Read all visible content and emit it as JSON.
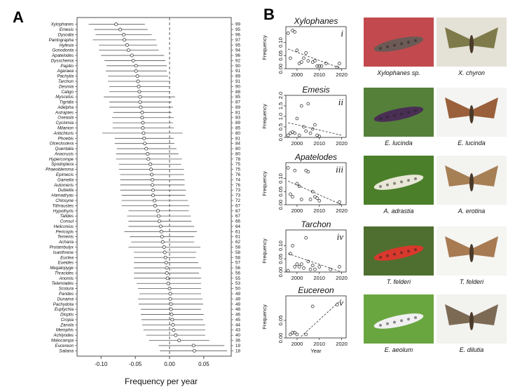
{
  "panel_a_label": "A",
  "panel_b_label": "B",
  "chart_data": [
    {
      "type": "forest",
      "panel": "A",
      "xlabel": "Frequency per year",
      "xlim": [
        -0.135,
        0.09
      ],
      "xticks": [
        -0.1,
        -0.05,
        0.0,
        0.05
      ],
      "xtick_labels": [
        "-0.10",
        "-0.05",
        "0.00",
        "0.05"
      ],
      "reference_line": 0,
      "species": [
        "Xylophanes",
        "Emesis",
        "Dysodia",
        "Pantographa",
        "Hylesia",
        "Gonodonta",
        "Apatelodes",
        "Dysschema",
        "Papilio",
        "Agaraea",
        "Pachylia",
        "Tarchon",
        "Desmia",
        "Caligo",
        "Myscelus",
        "Tigridia",
        "Adelpha",
        "Astraptes",
        "Oxeasia",
        "Cyclomia",
        "Milanion",
        "Antichloris",
        "Phoebis",
        "Olceclostera",
        "Quentalia",
        "Anacrusis",
        "Hypercompe",
        "Spodoptera",
        "Phaeoblemma",
        "Epimecis",
        "Gamelia",
        "Automeris",
        "Dubiella",
        "Hamadryas",
        "Chlosyne",
        "Tithraustes",
        "Hypothyris",
        "Talides",
        "Consul",
        "Heliconius",
        "Pericopis",
        "Temenis",
        "Acharia",
        "Protambulyx",
        "Isanthrene",
        "Euclea",
        "Eueides",
        "Megalopyge",
        "Thracides",
        "Anomis",
        "Telemiades",
        "Scotura",
        "Parides",
        "Dunama",
        "Pachydota",
        "Euptychia",
        "Dioptis",
        "Cropia",
        "Zanola",
        "Memphis",
        "Achlyodes",
        "Malocampa",
        "Eucereon",
        "Saliana"
      ],
      "counts": [
        99,
        95,
        96,
        97,
        95,
        94,
        96,
        92,
        90,
        91,
        89,
        91,
        90,
        88,
        85,
        87,
        89,
        81,
        83,
        89,
        85,
        80,
        81,
        84,
        80,
        80,
        78,
        75,
        75,
        76,
        74,
        76,
        73,
        73,
        72,
        67,
        67,
        67,
        66,
        64,
        61,
        61,
        62,
        58,
        58,
        58,
        57,
        56,
        56,
        55,
        53,
        50,
        49,
        49,
        49,
        48,
        46,
        45,
        44,
        43,
        40,
        36,
        19,
        18
      ],
      "estimates": [
        -0.078,
        -0.072,
        -0.067,
        -0.066,
        -0.062,
        -0.06,
        -0.055,
        -0.053,
        -0.049,
        -0.049,
        -0.047,
        -0.046,
        -0.045,
        -0.044,
        -0.043,
        -0.043,
        -0.042,
        -0.04,
        -0.04,
        -0.039,
        -0.039,
        -0.038,
        -0.037,
        -0.036,
        -0.034,
        -0.032,
        -0.031,
        -0.028,
        -0.027,
        -0.026,
        -0.025,
        -0.025,
        -0.024,
        -0.024,
        -0.022,
        -0.021,
        -0.017,
        -0.016,
        -0.015,
        -0.013,
        -0.012,
        -0.011,
        -0.01,
        -0.008,
        -0.007,
        -0.006,
        -0.005,
        -0.004,
        -0.004,
        -0.003,
        -0.002,
        0.0,
        0.001,
        0.001,
        0.002,
        0.002,
        0.003,
        0.004,
        0.005,
        0.006,
        0.009,
        0.014,
        0.035,
        0.036
      ],
      "ci_lower": [
        -0.118,
        -0.11,
        -0.108,
        -0.112,
        -0.103,
        -0.103,
        -0.1,
        -0.095,
        -0.092,
        -0.093,
        -0.09,
        -0.09,
        -0.088,
        -0.088,
        -0.096,
        -0.088,
        -0.088,
        -0.082,
        -0.084,
        -0.083,
        -0.083,
        -0.098,
        -0.08,
        -0.08,
        -0.077,
        -0.078,
        -0.078,
        -0.074,
        -0.074,
        -0.072,
        -0.072,
        -0.072,
        -0.072,
        -0.07,
        -0.07,
        -0.07,
        -0.06,
        -0.062,
        -0.06,
        -0.06,
        -0.066,
        -0.058,
        -0.056,
        -0.06,
        -0.052,
        -0.052,
        -0.052,
        -0.052,
        -0.052,
        -0.052,
        -0.048,
        -0.046,
        -0.044,
        -0.046,
        -0.045,
        -0.042,
        -0.042,
        -0.041,
        -0.04,
        -0.038,
        -0.034,
        -0.03,
        -0.016,
        -0.014
      ],
      "ci_upper": [
        -0.036,
        -0.032,
        -0.026,
        -0.02,
        -0.018,
        -0.016,
        -0.008,
        -0.006,
        -0.004,
        -0.004,
        -0.002,
        0.001,
        0.001,
        0.001,
        0.008,
        0.003,
        0.005,
        0.003,
        0.006,
        0.005,
        0.006,
        0.019,
        0.006,
        0.007,
        0.01,
        0.013,
        0.018,
        0.017,
        0.021,
        0.021,
        0.022,
        0.022,
        0.024,
        0.023,
        0.027,
        0.029,
        0.028,
        0.031,
        0.032,
        0.036,
        0.04,
        0.036,
        0.036,
        0.045,
        0.039,
        0.038,
        0.042,
        0.046,
        0.043,
        0.046,
        0.046,
        0.046,
        0.046,
        0.048,
        0.049,
        0.046,
        0.05,
        0.049,
        0.052,
        0.052,
        0.052,
        0.058,
        0.08,
        0.084
      ]
    },
    {
      "type": "scatter",
      "panel": "B-i",
      "title": "Xylophanes",
      "numeral": "i",
      "xlabel": "",
      "ylabel": "Frequency",
      "xlim": [
        1995,
        2022
      ],
      "ylim": [
        0,
        0.16
      ],
      "xticks": [
        2000,
        2010,
        2020
      ],
      "yticks": [
        0.0,
        0.05,
        0.1
      ],
      "ytick_labels": [
        "0.00",
        "0.05",
        "0.10"
      ],
      "x": [
        1996,
        1997,
        1998,
        1999,
        2000,
        2001,
        2002,
        2003,
        2004,
        2005,
        2007,
        2008,
        2009,
        2010,
        2011,
        2013,
        2018,
        2019
      ],
      "y": [
        0.135,
        0.04,
        0.145,
        0.14,
        0.07,
        0.02,
        0.025,
        0.04,
        0.06,
        0.03,
        0.025,
        0.03,
        0.01,
        0.01,
        0.01,
        0.02,
        0.005,
        0.02
      ],
      "trend": [
        [
          1996,
          0.075
        ],
        [
          2020,
          0.0
        ]
      ]
    },
    {
      "type": "scatter",
      "panel": "B-ii",
      "title": "Emesis",
      "numeral": "ii",
      "xlabel": "",
      "ylabel": "Frequency",
      "xlim": [
        1995,
        2022
      ],
      "ylim": [
        0,
        2.0
      ],
      "xticks": [
        2000,
        2010,
        2020
      ],
      "yticks": [
        0.0,
        0.5,
        1.0,
        1.5,
        2.0
      ],
      "ytick_labels": [
        "0.0",
        "0.5",
        "1.0",
        "1.5",
        "2.0"
      ],
      "x": [
        1996,
        1997,
        1998,
        1999,
        2000,
        2001,
        2002,
        2003,
        2004,
        2005,
        2006,
        2007,
        2008,
        2009,
        2010
      ],
      "y": [
        0.1,
        0.2,
        0.25,
        0.2,
        0.9,
        0.1,
        1.5,
        0.5,
        0.3,
        1.6,
        0.2,
        0.4,
        0.6,
        0.1,
        0.05
      ],
      "trend": [
        [
          1996,
          0.7
        ],
        [
          2020,
          0.1
        ]
      ]
    },
    {
      "type": "scatter",
      "panel": "B-iii",
      "title": "Apatelodes",
      "numeral": "iii",
      "xlabel": "",
      "ylabel": "Frequency",
      "xlim": [
        1995,
        2022
      ],
      "ylim": [
        0,
        0.16
      ],
      "xticks": [
        2000,
        2010,
        2020
      ],
      "yticks": [
        0.0,
        0.05,
        0.1
      ],
      "ytick_labels": [
        "0.00",
        "0.05",
        "0.10"
      ],
      "x": [
        1996,
        1997,
        1998,
        1999,
        2000,
        2001,
        2002,
        2004,
        2005,
        2006,
        2007,
        2008,
        2009,
        2010,
        2019
      ],
      "y": [
        0.14,
        0.04,
        0.03,
        0.13,
        0.08,
        0.07,
        0.02,
        0.13,
        0.125,
        0.02,
        0.05,
        0.03,
        0.025,
        0.015,
        0.01
      ],
      "trend": [
        [
          1996,
          0.09
        ],
        [
          2020,
          0.0
        ]
      ]
    },
    {
      "type": "scatter",
      "panel": "B-iv",
      "title": "Tarchon",
      "numeral": "iv",
      "xlabel": "",
      "ylabel": "Frequency",
      "xlim": [
        1995,
        2022
      ],
      "ylim": [
        0,
        0.16
      ],
      "xticks": [
        2000,
        2010,
        2020
      ],
      "yticks": [
        0.0,
        0.05,
        0.1
      ],
      "ytick_labels": [
        "0.00",
        "0.05",
        "0.10"
      ],
      "x": [
        1996,
        1997,
        1998,
        1999,
        2000,
        2001,
        2002,
        2003,
        2004,
        2005,
        2006,
        2007,
        2008,
        2010,
        2015,
        2019
      ],
      "y": [
        0.005,
        0.07,
        0.1,
        0.02,
        0.03,
        0.02,
        0.03,
        0.015,
        0.13,
        0.04,
        0.01,
        0.025,
        0.01,
        0.02,
        0.01,
        0.02
      ],
      "trend": [
        [
          1996,
          0.07
        ],
        [
          2020,
          0.0
        ]
      ]
    },
    {
      "type": "scatter",
      "panel": "B-v",
      "title": "Eucereon",
      "numeral": "v",
      "xlabel": "Year",
      "ylabel": "Frequency",
      "xlim": [
        1995,
        2022
      ],
      "ylim": [
        0,
        0.12
      ],
      "xticks": [
        2000,
        2010,
        2020
      ],
      "yticks": [
        0.0,
        0.05
      ],
      "ytick_labels": [
        "0.00",
        "0.05"
      ],
      "x": [
        1997,
        1998,
        1999,
        2000,
        2004,
        2007,
        2018
      ],
      "y": [
        0.01,
        0.015,
        0.015,
        0.01,
        0.01,
        0.09,
        0.095
      ],
      "trend": [
        [
          1996,
          -0.03
        ],
        [
          2020,
          0.11
        ]
      ]
    }
  ],
  "photos": [
    {
      "caption": "Xylophanes sp.",
      "subject": "caterpillar",
      "color": "#6b5a55",
      "background": "#c24a4e"
    },
    {
      "caption": "X. chyron",
      "subject": "hawkmoth",
      "color": "#7e7a4a",
      "background": "#e4e1d6"
    },
    {
      "caption": "E. lucinda",
      "subject": "caterpillar",
      "color": "#4a2f55",
      "background": "#55803a"
    },
    {
      "caption": "E. lucinda",
      "subject": "butterfly",
      "color": "#9a5f3b",
      "background": "#f4f4f2"
    },
    {
      "caption": "A. adrastia",
      "subject": "caterpillar",
      "color": "#e9e7d8",
      "background": "#4b7f2a"
    },
    {
      "caption": "A. erotina",
      "subject": "moth",
      "color": "#a77f55",
      "background": "#f3f3f0"
    },
    {
      "caption": "T. felderi",
      "subject": "caterpillar",
      "color": "#d9382d",
      "background": "#4e6f2f"
    },
    {
      "caption": "T. felderi",
      "subject": "moth",
      "color": "#a77a52",
      "background": "#f5f5f2"
    },
    {
      "caption": "E. aeolum",
      "subject": "caterpillar",
      "color": "#f0f0f0",
      "background": "#6aa640"
    },
    {
      "caption": "E. dilutia",
      "subject": "moth",
      "color": "#7d6a55",
      "background": "#f2f2ef"
    }
  ]
}
